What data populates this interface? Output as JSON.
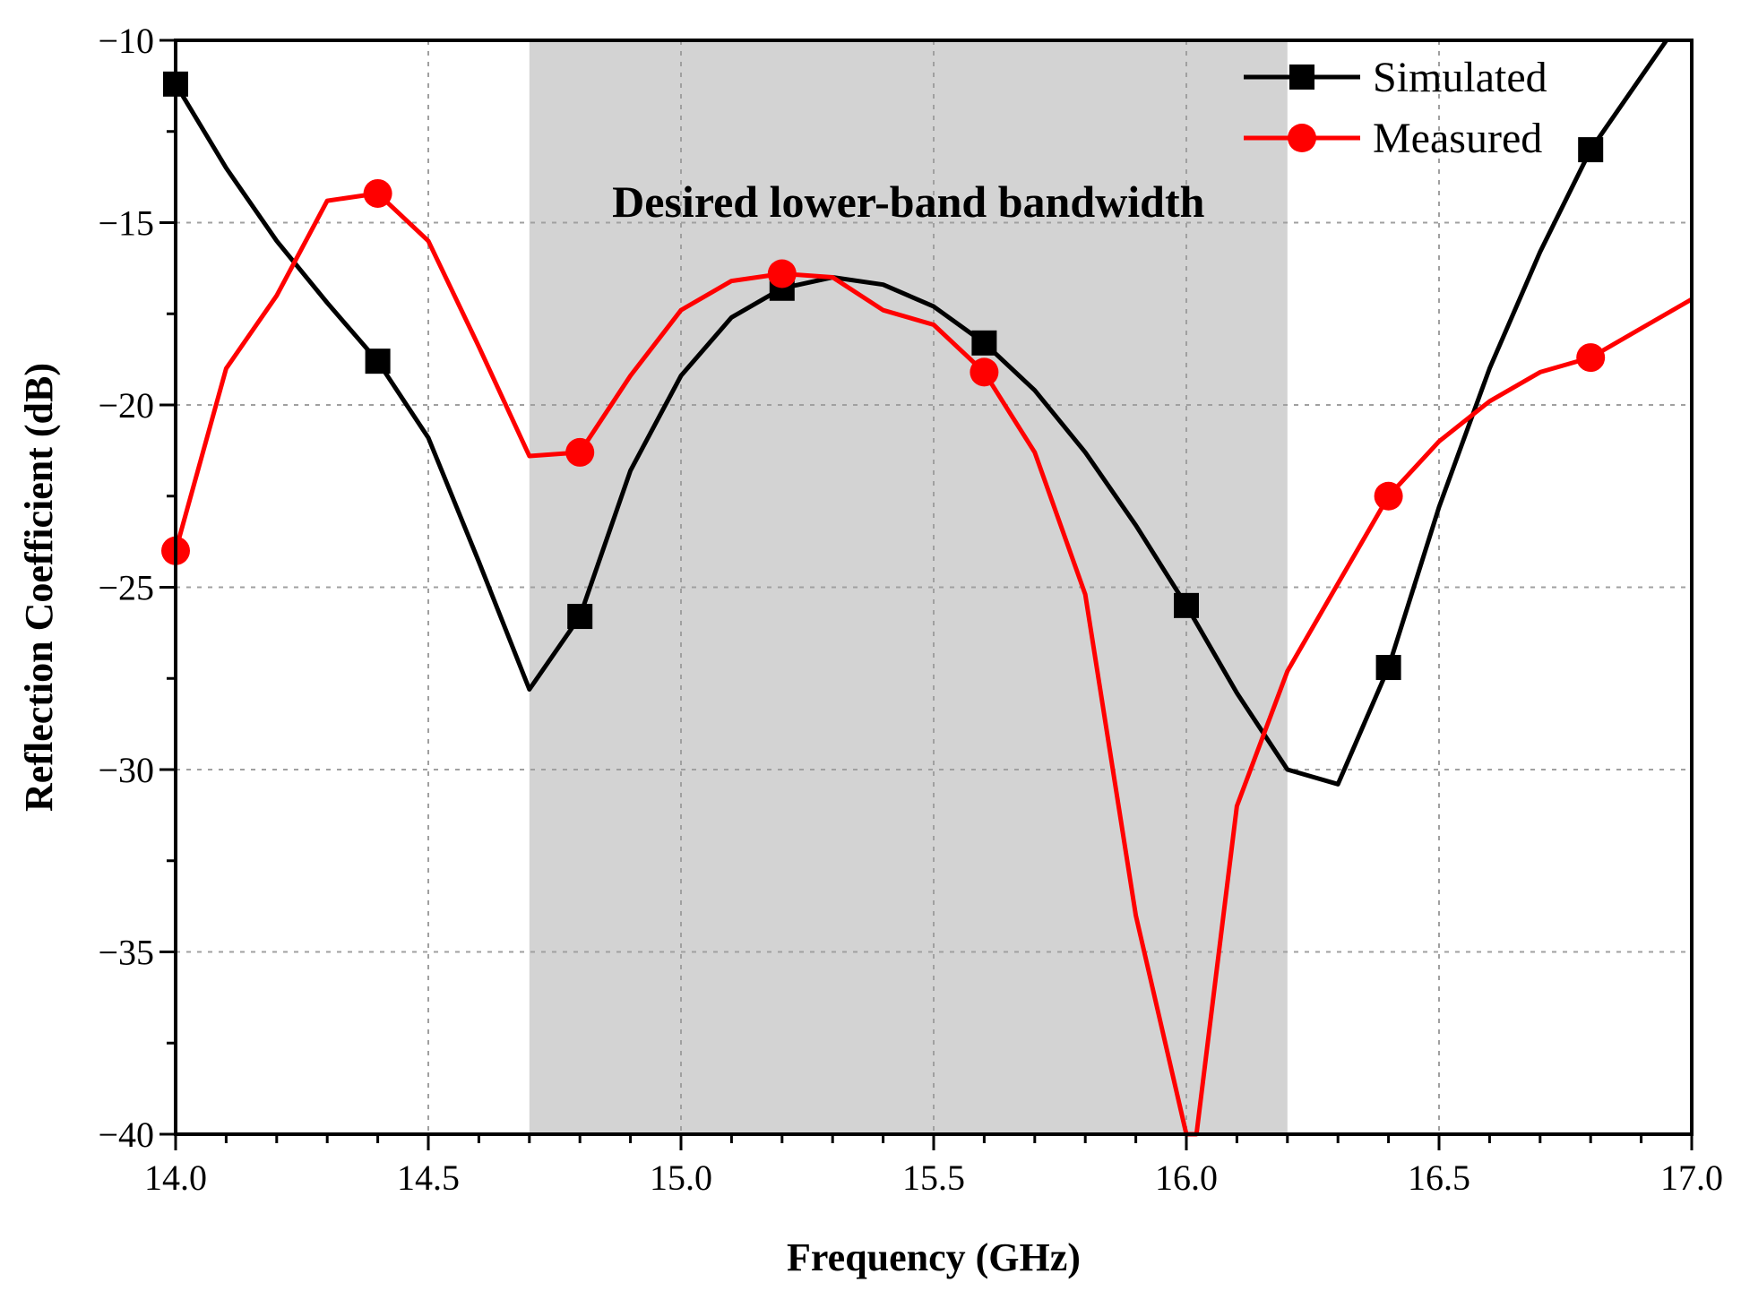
{
  "chart_data": {
    "type": "line",
    "title": "",
    "xlabel": "Frequency (GHz)",
    "ylabel": "Reflection Coefficient (dB)",
    "xlim": [
      14.0,
      17.0
    ],
    "ylim": [
      -40,
      -10
    ],
    "x_ticks": [
      14.0,
      14.5,
      15.0,
      15.5,
      16.0,
      16.5,
      17.0
    ],
    "x_tick_labels": [
      "14.0",
      "14.5",
      "15.0",
      "15.5",
      "16.0",
      "16.5",
      "17.0"
    ],
    "y_ticks": [
      -40,
      -35,
      -30,
      -25,
      -20,
      -15,
      -10
    ],
    "y_tick_labels": [
      "−40",
      "−35",
      "−30",
      "−25",
      "−20",
      "−15",
      "−10"
    ],
    "grid": true,
    "legend_position": "top-right",
    "shaded_region": {
      "x_start": 14.7,
      "x_end": 16.2,
      "color": "#d3d3d3",
      "label": "Desired lower-band bandwidth"
    },
    "series": [
      {
        "name": "Simulated",
        "color": "#000000",
        "marker": "square",
        "x": [
          14.0,
          14.1,
          14.2,
          14.3,
          14.4,
          14.5,
          14.6,
          14.7,
          14.8,
          14.9,
          15.0,
          15.1,
          15.2,
          15.3,
          15.4,
          15.5,
          15.6,
          15.7,
          15.8,
          15.9,
          16.0,
          16.1,
          16.2,
          16.3,
          16.4,
          16.5,
          16.6,
          16.7,
          16.8,
          16.9,
          16.95
        ],
        "y": [
          -11.2,
          -13.5,
          -15.5,
          -17.2,
          -18.8,
          -20.9,
          -24.3,
          -27.8,
          -25.8,
          -21.8,
          -19.2,
          -17.6,
          -16.8,
          -16.5,
          -16.7,
          -17.3,
          -18.3,
          -19.6,
          -21.3,
          -23.3,
          -25.5,
          -27.9,
          -30.0,
          -30.4,
          -27.2,
          -22.8,
          -19.0,
          -15.8,
          -13.0,
          -11.0,
          -10.0
        ],
        "marker_x": [
          14.0,
          14.4,
          14.8,
          15.2,
          15.6,
          16.0,
          16.4,
          16.8
        ]
      },
      {
        "name": "Measured",
        "color": "#ff0000",
        "marker": "circle",
        "x": [
          14.0,
          14.1,
          14.2,
          14.3,
          14.4,
          14.5,
          14.6,
          14.7,
          14.8,
          14.9,
          15.0,
          15.1,
          15.2,
          15.3,
          15.4,
          15.5,
          15.6,
          15.7,
          15.8,
          15.9,
          16.0,
          16.02,
          16.1,
          16.2,
          16.3,
          16.4,
          16.5,
          16.6,
          16.7,
          16.8,
          16.9,
          17.0
        ],
        "y": [
          -24.0,
          -19.0,
          -17.0,
          -14.4,
          -14.2,
          -15.5,
          -18.4,
          -21.4,
          -21.3,
          -19.2,
          -17.4,
          -16.6,
          -16.4,
          -16.5,
          -17.4,
          -17.8,
          -19.1,
          -21.3,
          -25.2,
          -34.0,
          -40.0,
          -40.0,
          -31.0,
          -27.3,
          -24.9,
          -22.5,
          -21.0,
          -19.9,
          -19.1,
          -18.7,
          -17.9,
          -17.1
        ],
        "marker_x": [
          14.0,
          14.4,
          14.8,
          15.2,
          15.6,
          16.4,
          16.8
        ]
      }
    ]
  }
}
